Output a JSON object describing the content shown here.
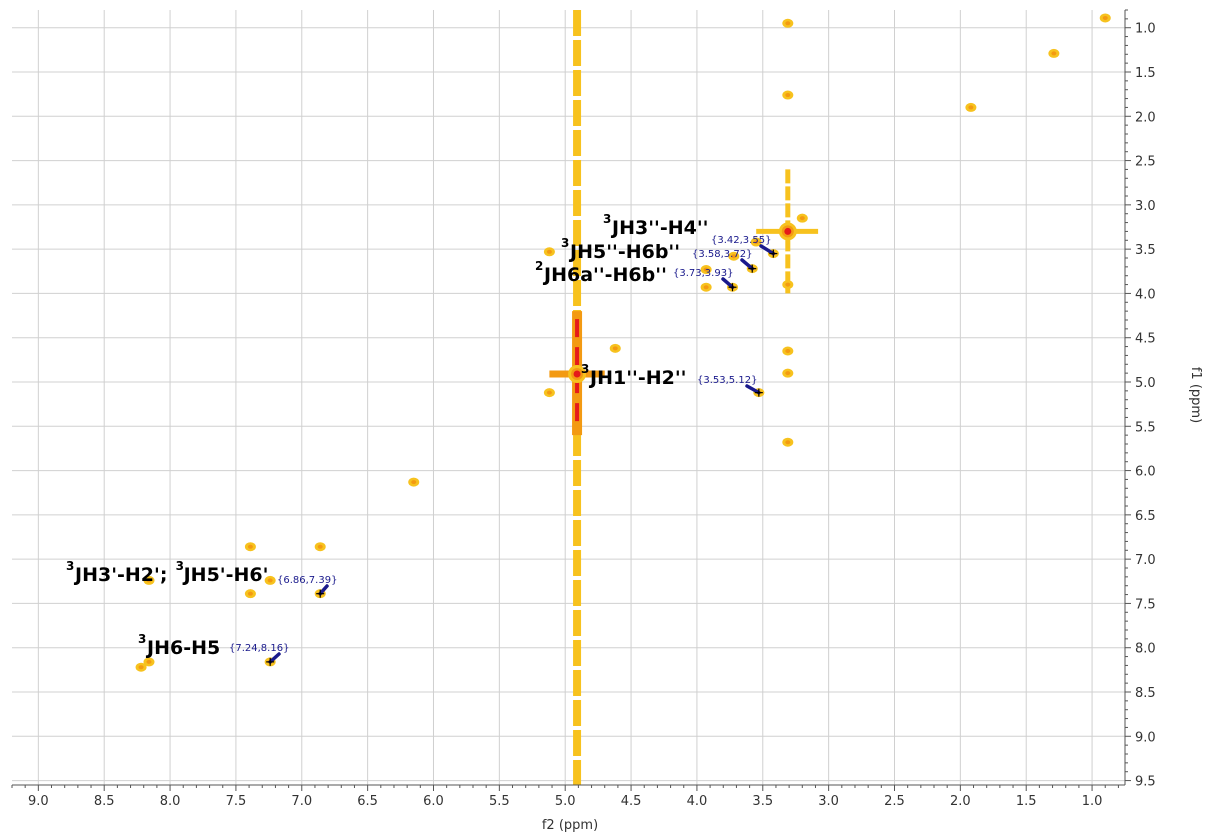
{
  "colors": {
    "peak_low": "#f7c21e",
    "peak_mid": "#f39a12",
    "peak_high": "#e51a1a",
    "grid": "#d0d0d0",
    "axis": "#555555",
    "coord_text": "#1a1a8c",
    "arrow": "#1a1a8c"
  },
  "chart_data": {
    "type": "scatter",
    "subtype": "2D NMR COSY contour plot",
    "xlabel": "f2 (ppm)",
    "ylabel": "f1 (ppm)",
    "x_reversed": true,
    "y_reversed": true,
    "xlim": [
      9.2,
      0.75
    ],
    "ylim": [
      0.8,
      9.55
    ],
    "grid": true,
    "x_ticks": [
      9.0,
      8.5,
      8.0,
      7.5,
      7.0,
      6.5,
      6.0,
      5.5,
      5.0,
      4.5,
      4.0,
      3.5,
      3.0,
      2.5,
      2.0,
      1.5,
      1.0
    ],
    "x_tick_labels": [
      "9.0",
      "8.5",
      "8.0",
      "7.5",
      "7.0",
      "6.5",
      "6.0",
      "5.5",
      "5.0",
      "4.5",
      "4.0",
      "3.5",
      "3.0",
      "2.5",
      "2.0",
      "1.5",
      "1.0"
    ],
    "y_ticks": [
      1.0,
      1.5,
      2.0,
      2.5,
      3.0,
      3.5,
      4.0,
      4.5,
      5.0,
      5.5,
      6.0,
      6.5,
      7.0,
      7.5,
      8.0,
      8.5,
      9.0,
      9.5
    ],
    "y_tick_labels": [
      "1.0",
      "1.5",
      "2.0",
      "2.5",
      "3.0",
      "3.5",
      "4.0",
      "4.5",
      "5.0",
      "5.5",
      "6.0",
      "6.5",
      "7.0",
      "7.5",
      "8.0",
      "8.5",
      "9.0",
      "9.5"
    ],
    "solvent_streak": {
      "f2": 4.91,
      "f1_range": [
        0.8,
        9.55
      ],
      "intense_f1": [
        4.2,
        5.6
      ]
    },
    "methanol_streak": {
      "f2": 3.31,
      "f1_range": [
        2.6,
        4.0
      ]
    },
    "peaks": [
      {
        "f2": 0.9,
        "f1": 0.89,
        "intensity": 1
      },
      {
        "f2": 1.29,
        "f1": 1.29,
        "intensity": 1
      },
      {
        "f2": 1.92,
        "f1": 1.9,
        "intensity": 1
      },
      {
        "f2": 3.31,
        "f1": 1.76,
        "intensity": 1
      },
      {
        "f2": 3.31,
        "f1": 0.95,
        "intensity": 1
      },
      {
        "f2": 3.31,
        "f1": 3.3,
        "intensity": 3
      },
      {
        "f2": 3.2,
        "f1": 3.15,
        "intensity": 1
      },
      {
        "f2": 3.42,
        "f1": 3.55,
        "intensity": 1
      },
      {
        "f2": 3.55,
        "f1": 3.42,
        "intensity": 1
      },
      {
        "f2": 3.58,
        "f1": 3.72,
        "intensity": 1
      },
      {
        "f2": 3.72,
        "f1": 3.58,
        "intensity": 1
      },
      {
        "f2": 3.73,
        "f1": 3.93,
        "intensity": 1
      },
      {
        "f2": 3.93,
        "f1": 3.73,
        "intensity": 1
      },
      {
        "f2": 3.93,
        "f1": 3.93,
        "intensity": 1
      },
      {
        "f2": 3.31,
        "f1": 3.9,
        "intensity": 1
      },
      {
        "f2": 3.31,
        "f1": 4.65,
        "intensity": 1
      },
      {
        "f2": 3.31,
        "f1": 4.9,
        "intensity": 1
      },
      {
        "f2": 3.31,
        "f1": 5.68,
        "intensity": 1
      },
      {
        "f2": 3.53,
        "f1": 5.12,
        "intensity": 1
      },
      {
        "f2": 4.62,
        "f1": 4.62,
        "intensity": 1
      },
      {
        "f2": 5.12,
        "f1": 5.12,
        "intensity": 1
      },
      {
        "f2": 5.12,
        "f1": 3.53,
        "intensity": 1
      },
      {
        "f2": 6.15,
        "f1": 6.13,
        "intensity": 1
      },
      {
        "f2": 4.91,
        "f1": 4.91,
        "intensity": 3
      },
      {
        "f2": 6.86,
        "f1": 6.86,
        "intensity": 1
      },
      {
        "f2": 7.39,
        "f1": 7.39,
        "intensity": 1
      },
      {
        "f2": 7.39,
        "f1": 6.86,
        "intensity": 1
      },
      {
        "f2": 6.86,
        "f1": 7.39,
        "intensity": 1
      },
      {
        "f2": 7.24,
        "f1": 7.24,
        "intensity": 1
      },
      {
        "f2": 8.16,
        "f1": 8.16,
        "intensity": 1
      },
      {
        "f2": 8.16,
        "f1": 7.24,
        "intensity": 1
      },
      {
        "f2": 7.24,
        "f1": 8.16,
        "intensity": 1
      },
      {
        "f2": 8.22,
        "f1": 8.22,
        "intensity": 1
      }
    ],
    "annotations": [
      {
        "sup": "3",
        "text": "JH3''-H4''",
        "coord": "{3.42,3.55}",
        "f2": 3.42,
        "f1": 3.55
      },
      {
        "sup": "3",
        "text": "JH5''-H6b''",
        "coord": "{3.58,3.72}",
        "f2": 3.58,
        "f1": 3.72
      },
      {
        "sup": "2",
        "text": "JH6a''-H6b''",
        "coord": "{3.73,3.93}",
        "f2": 3.73,
        "f1": 3.93
      },
      {
        "sup": "3",
        "text": "JH1''-H2''",
        "coord": "{3.53,5.12}",
        "f2": 3.53,
        "f1": 5.12
      },
      {
        "sup": "3",
        "text": "JH3'-H2';",
        "sup2": "3",
        "text2": "JH5'-H6'",
        "coord": "{6.86,7.39}",
        "f2": 6.86,
        "f1": 7.39
      },
      {
        "sup": "3",
        "text": "JH6-H5",
        "coord": "{7.24,8.16}",
        "f2": 7.24,
        "f1": 8.16
      }
    ]
  }
}
